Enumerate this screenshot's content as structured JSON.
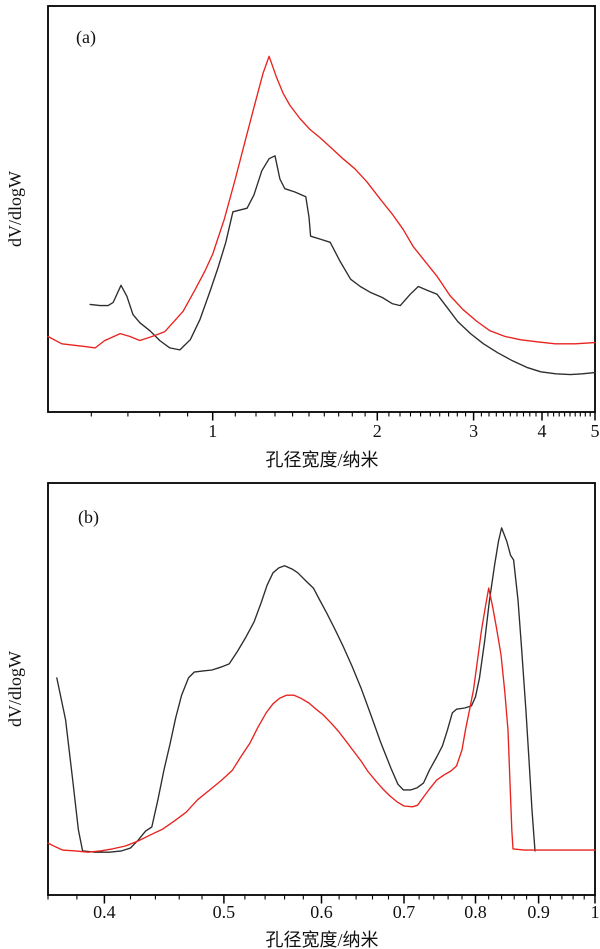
{
  "colors": {
    "red": "#e8231f",
    "black": "#2d2d2d",
    "frame": "#000000",
    "background": "#ffffff"
  },
  "chart_data": [
    {
      "type": "line",
      "panel_tag": "(a)",
      "xlabel": "孔径宽度/纳米",
      "ylabel": "dV/dlogW",
      "x_scale": "log",
      "x_range": [
        0.5,
        5
      ],
      "y_range": [
        0,
        1
      ],
      "y_units": "arbitrary (no y tick labels shown)",
      "grid": "off",
      "legend": "none",
      "x_major_ticks": [
        1,
        2,
        3,
        4,
        5
      ],
      "x_major_tick_labels": [
        "1",
        "2",
        "3",
        "4",
        "5"
      ],
      "x_minor_ticks": [
        0.6,
        0.7,
        0.8,
        0.9,
        1.1,
        1.2,
        1.3,
        1.4,
        1.5,
        1.6,
        1.7,
        1.8,
        1.9,
        2.1,
        2.2,
        2.3,
        2.4,
        2.5,
        2.6,
        2.7,
        2.8,
        2.9,
        3.1,
        3.2,
        3.3,
        3.4,
        3.5,
        3.6,
        3.7,
        3.8,
        3.9,
        4.1,
        4.2,
        4.3,
        4.4,
        4.5,
        4.6,
        4.7,
        4.8,
        4.9
      ],
      "series": [
        {
          "name": "black-curve",
          "color_key": "black",
          "points": [
            [
              0.597,
              0.265
            ],
            [
              0.623,
              0.262
            ],
            [
              0.644,
              0.262
            ],
            [
              0.658,
              0.27
            ],
            [
              0.68,
              0.312
            ],
            [
              0.697,
              0.285
            ],
            [
              0.715,
              0.24
            ],
            [
              0.736,
              0.22
            ],
            [
              0.768,
              0.2
            ],
            [
              0.8,
              0.176
            ],
            [
              0.835,
              0.158
            ],
            [
              0.871,
              0.153
            ],
            [
              0.91,
              0.178
            ],
            [
              0.948,
              0.228
            ],
            [
              0.989,
              0.297
            ],
            [
              1.023,
              0.356
            ],
            [
              1.057,
              0.418
            ],
            [
              1.089,
              0.493
            ],
            [
              1.156,
              0.502
            ],
            [
              1.19,
              0.535
            ],
            [
              1.23,
              0.594
            ],
            [
              1.268,
              0.624
            ],
            [
              1.3,
              0.631
            ],
            [
              1.327,
              0.574
            ],
            [
              1.355,
              0.55
            ],
            [
              1.412,
              0.542
            ],
            [
              1.48,
              0.53
            ],
            [
              1.5,
              0.48
            ],
            [
              1.51,
              0.433
            ],
            [
              1.57,
              0.426
            ],
            [
              1.64,
              0.418
            ],
            [
              1.71,
              0.371
            ],
            [
              1.787,
              0.327
            ],
            [
              1.862,
              0.309
            ],
            [
              1.94,
              0.295
            ],
            [
              2.042,
              0.282
            ],
            [
              2.128,
              0.267
            ],
            [
              2.203,
              0.262
            ],
            [
              2.297,
              0.29
            ],
            [
              2.376,
              0.309
            ],
            [
              2.466,
              0.3
            ],
            [
              2.572,
              0.29
            ],
            [
              2.685,
              0.257
            ],
            [
              2.805,
              0.223
            ],
            [
              2.96,
              0.193
            ],
            [
              3.127,
              0.168
            ],
            [
              3.318,
              0.146
            ],
            [
              3.533,
              0.126
            ],
            [
              3.766,
              0.109
            ],
            [
              3.98,
              0.099
            ],
            [
              4.24,
              0.094
            ],
            [
              4.51,
              0.092
            ],
            [
              4.74,
              0.094
            ],
            [
              5.0,
              0.097
            ]
          ]
        },
        {
          "name": "red-curve",
          "color_key": "red",
          "points": [
            [
              0.5,
              0.186
            ],
            [
              0.53,
              0.168
            ],
            [
              0.585,
              0.161
            ],
            [
              0.61,
              0.158
            ],
            [
              0.635,
              0.176
            ],
            [
              0.678,
              0.193
            ],
            [
              0.706,
              0.186
            ],
            [
              0.736,
              0.176
            ],
            [
              0.775,
              0.186
            ],
            [
              0.818,
              0.198
            ],
            [
              0.883,
              0.248
            ],
            [
              0.929,
              0.302
            ],
            [
              0.968,
              0.347
            ],
            [
              1.0,
              0.389
            ],
            [
              1.05,
              0.475
            ],
            [
              1.1,
              0.574
            ],
            [
              1.146,
              0.666
            ],
            [
              1.195,
              0.76
            ],
            [
              1.236,
              0.834
            ],
            [
              1.268,
              0.876
            ],
            [
              1.306,
              0.827
            ],
            [
              1.345,
              0.785
            ],
            [
              1.385,
              0.755
            ],
            [
              1.444,
              0.723
            ],
            [
              1.506,
              0.696
            ],
            [
              1.57,
              0.676
            ],
            [
              1.652,
              0.649
            ],
            [
              1.73,
              0.624
            ],
            [
              1.82,
              0.599
            ],
            [
              1.914,
              0.567
            ],
            [
              2.023,
              0.525
            ],
            [
              2.128,
              0.488
            ],
            [
              2.229,
              0.45
            ],
            [
              2.325,
              0.408
            ],
            [
              2.445,
              0.371
            ],
            [
              2.572,
              0.334
            ],
            [
              2.715,
              0.287
            ],
            [
              2.87,
              0.252
            ],
            [
              3.043,
              0.223
            ],
            [
              3.214,
              0.2
            ],
            [
              3.425,
              0.186
            ],
            [
              3.649,
              0.178
            ],
            [
              3.918,
              0.173
            ],
            [
              4.23,
              0.168
            ],
            [
              4.6,
              0.168
            ],
            [
              5.0,
              0.171
            ]
          ]
        }
      ]
    },
    {
      "type": "line",
      "panel_tag": "(b)",
      "xlabel": "孔径宽度/纳米",
      "ylabel": "dV/dlogW",
      "x_scale": "log",
      "x_range": [
        0.36,
        1.0
      ],
      "y_range": [
        0,
        1
      ],
      "y_units": "arbitrary (no y tick labels shown)",
      "grid": "off",
      "legend": "none",
      "x_major_ticks": [
        0.4,
        0.5,
        0.6,
        0.7,
        0.8,
        0.9,
        1
      ],
      "x_major_tick_labels": [
        "0.4",
        "0.5",
        "0.6",
        "0.7",
        "0.8",
        "0.9",
        "1"
      ],
      "x_minor_ticks": [
        0.36,
        0.38,
        0.42,
        0.44,
        0.46,
        0.48,
        0.52,
        0.54,
        0.56,
        0.58,
        0.62,
        0.64,
        0.66,
        0.68,
        0.72,
        0.74,
        0.76,
        0.78,
        0.82,
        0.84,
        0.86,
        0.88,
        0.92,
        0.94,
        0.96,
        0.98
      ],
      "series": [
        {
          "name": "black-curve",
          "color_key": "black",
          "points": [
            [
              0.366,
              0.527
            ],
            [
              0.372,
              0.425
            ],
            [
              0.377,
              0.279
            ],
            [
              0.381,
              0.158
            ],
            [
              0.384,
              0.107
            ],
            [
              0.393,
              0.104
            ],
            [
              0.404,
              0.104
            ],
            [
              0.413,
              0.107
            ],
            [
              0.42,
              0.114
            ],
            [
              0.426,
              0.133
            ],
            [
              0.432,
              0.155
            ],
            [
              0.437,
              0.165
            ],
            [
              0.442,
              0.231
            ],
            [
              0.447,
              0.303
            ],
            [
              0.452,
              0.364
            ],
            [
              0.457,
              0.43
            ],
            [
              0.462,
              0.485
            ],
            [
              0.468,
              0.527
            ],
            [
              0.473,
              0.541
            ],
            [
              0.481,
              0.544
            ],
            [
              0.489,
              0.546
            ],
            [
              0.497,
              0.553
            ],
            [
              0.505,
              0.561
            ],
            [
              0.513,
              0.592
            ],
            [
              0.521,
              0.626
            ],
            [
              0.529,
              0.663
            ],
            [
              0.536,
              0.709
            ],
            [
              0.542,
              0.752
            ],
            [
              0.548,
              0.782
            ],
            [
              0.554,
              0.794
            ],
            [
              0.56,
              0.799
            ],
            [
              0.568,
              0.791
            ],
            [
              0.574,
              0.782
            ],
            [
              0.583,
              0.762
            ],
            [
              0.591,
              0.745
            ],
            [
              0.598,
              0.716
            ],
            [
              0.606,
              0.684
            ],
            [
              0.615,
              0.646
            ],
            [
              0.624,
              0.607
            ],
            [
              0.635,
              0.556
            ],
            [
              0.646,
              0.502
            ],
            [
              0.658,
              0.437
            ],
            [
              0.67,
              0.371
            ],
            [
              0.683,
              0.308
            ],
            [
              0.692,
              0.269
            ],
            [
              0.699,
              0.255
            ],
            [
              0.709,
              0.255
            ],
            [
              0.717,
              0.26
            ],
            [
              0.726,
              0.272
            ],
            [
              0.734,
              0.303
            ],
            [
              0.744,
              0.335
            ],
            [
              0.752,
              0.362
            ],
            [
              0.759,
              0.4
            ],
            [
              0.766,
              0.442
            ],
            [
              0.772,
              0.451
            ],
            [
              0.784,
              0.454
            ],
            [
              0.794,
              0.459
            ],
            [
              0.8,
              0.481
            ],
            [
              0.806,
              0.527
            ],
            [
              0.814,
              0.619
            ],
            [
              0.821,
              0.714
            ],
            [
              0.829,
              0.801
            ],
            [
              0.835,
              0.859
            ],
            [
              0.84,
              0.891
            ],
            [
              0.848,
              0.859
            ],
            [
              0.854,
              0.825
            ],
            [
              0.859,
              0.813
            ],
            [
              0.866,
              0.716
            ],
            [
              0.872,
              0.595
            ],
            [
              0.879,
              0.449
            ],
            [
              0.884,
              0.328
            ],
            [
              0.889,
              0.206
            ],
            [
              0.894,
              0.107
            ]
          ]
        },
        {
          "name": "red-curve",
          "color_key": "red",
          "points": [
            [
              0.36,
              0.126
            ],
            [
              0.365,
              0.117
            ],
            [
              0.37,
              0.109
            ],
            [
              0.379,
              0.107
            ],
            [
              0.388,
              0.104
            ],
            [
              0.397,
              0.107
            ],
            [
              0.406,
              0.112
            ],
            [
              0.416,
              0.119
            ],
            [
              0.426,
              0.131
            ],
            [
              0.436,
              0.146
            ],
            [
              0.446,
              0.16
            ],
            [
              0.456,
              0.18
            ],
            [
              0.466,
              0.201
            ],
            [
              0.476,
              0.231
            ],
            [
              0.487,
              0.255
            ],
            [
              0.498,
              0.279
            ],
            [
              0.508,
              0.303
            ],
            [
              0.516,
              0.335
            ],
            [
              0.525,
              0.369
            ],
            [
              0.533,
              0.408
            ],
            [
              0.541,
              0.442
            ],
            [
              0.548,
              0.464
            ],
            [
              0.555,
              0.478
            ],
            [
              0.562,
              0.485
            ],
            [
              0.57,
              0.485
            ],
            [
              0.577,
              0.478
            ],
            [
              0.586,
              0.466
            ],
            [
              0.594,
              0.451
            ],
            [
              0.602,
              0.437
            ],
            [
              0.611,
              0.417
            ],
            [
              0.619,
              0.398
            ],
            [
              0.628,
              0.374
            ],
            [
              0.636,
              0.352
            ],
            [
              0.646,
              0.325
            ],
            [
              0.654,
              0.301
            ],
            [
              0.664,
              0.277
            ],
            [
              0.673,
              0.257
            ],
            [
              0.682,
              0.24
            ],
            [
              0.691,
              0.226
            ],
            [
              0.7,
              0.216
            ],
            [
              0.711,
              0.214
            ],
            [
              0.718,
              0.218
            ],
            [
              0.726,
              0.238
            ],
            [
              0.734,
              0.257
            ],
            [
              0.744,
              0.279
            ],
            [
              0.754,
              0.291
            ],
            [
              0.764,
              0.301
            ],
            [
              0.772,
              0.313
            ],
            [
              0.78,
              0.352
            ],
            [
              0.785,
              0.4
            ],
            [
              0.791,
              0.449
            ],
            [
              0.797,
              0.498
            ],
            [
              0.803,
              0.57
            ],
            [
              0.809,
              0.643
            ],
            [
              0.815,
              0.701
            ],
            [
              0.82,
              0.745
            ],
            [
              0.826,
              0.699
            ],
            [
              0.832,
              0.648
            ],
            [
              0.839,
              0.583
            ],
            [
              0.845,
              0.493
            ],
            [
              0.85,
              0.4
            ],
            [
              0.853,
              0.279
            ],
            [
              0.856,
              0.158
            ],
            [
              0.858,
              0.112
            ],
            [
              0.877,
              0.109
            ],
            [
              0.911,
              0.109
            ],
            [
              0.946,
              0.109
            ],
            [
              0.971,
              0.109
            ],
            [
              1.0,
              0.109
            ]
          ]
        }
      ]
    }
  ]
}
